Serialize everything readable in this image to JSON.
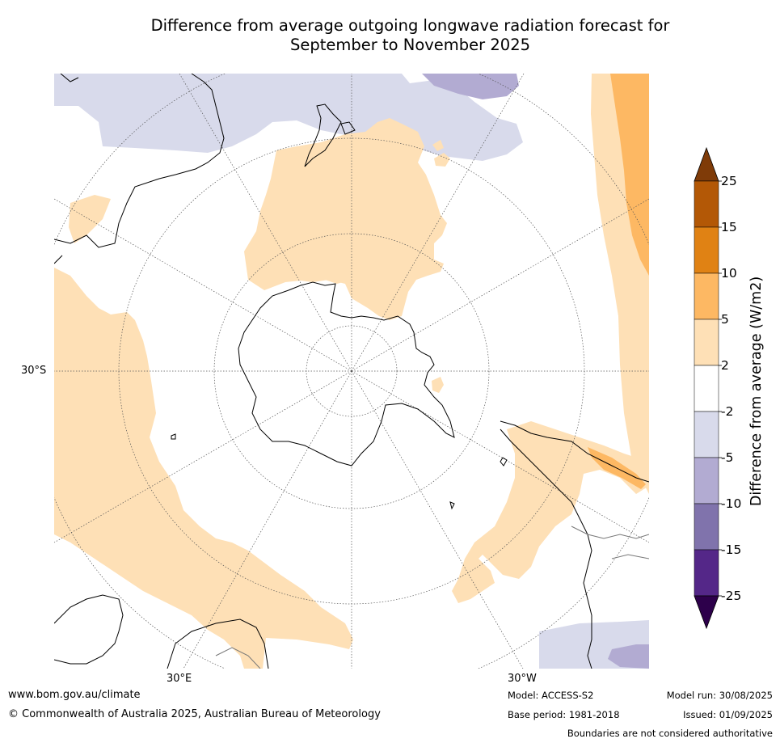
{
  "title_line1": "Difference from average outgoing longwave radiation forecast for",
  "title_line2": "September to November 2025",
  "map_labels": {
    "lat": "30°S",
    "lon_east": "30°E",
    "lon_west": "30°W"
  },
  "colorbar": {
    "title": "Difference from average (W/m2)",
    "ticks": [
      "25",
      "15",
      "10",
      "5",
      "2",
      "-2",
      "-5",
      "-10",
      "-15",
      "-25"
    ],
    "colors": {
      "over": "#7f3b08",
      "b15_25": "#b35806",
      "b10_15": "#e08214",
      "b5_10": "#fdb863",
      "b2_5": "#fee0b6",
      "neutral": "#ffffff",
      "bm5_m2": "#d8daeb",
      "bm10_m5": "#b2abd2",
      "bm15_m10": "#8073ac",
      "bm25_m15": "#542788",
      "under": "#2d004b"
    }
  },
  "footer": {
    "url": "www.bom.gov.au/climate",
    "copyright": "© Commonwealth of Australia 2025, Australian Bureau of Meteorology",
    "model": "Model: ACCESS-S2",
    "base_period": "Base period: 1981-2018",
    "model_run": "Model run: 30/08/2025",
    "issued": "Issued: 01/09/2025",
    "disclaimer": "Boundaries are not considered authoritative"
  }
}
